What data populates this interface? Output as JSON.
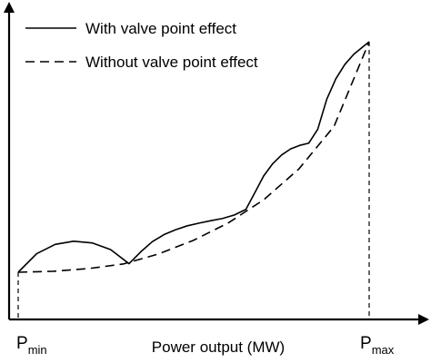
{
  "chart_data": {
    "type": "line",
    "title": "",
    "xlabel": "Power output (MW)",
    "ylabel": "",
    "x_tick_labels": [
      {
        "main": "P",
        "sub": "min"
      },
      {
        "main": "P",
        "sub": "max"
      }
    ],
    "xlim": [
      0,
      1
    ],
    "ylim": [
      0,
      1
    ],
    "grid": false,
    "legend": {
      "placement": "top-left",
      "entries": [
        {
          "label": "With valve point effect",
          "style": "solid"
        },
        {
          "label": "Without valve point effect",
          "style": "dashed"
        }
      ]
    },
    "series": [
      {
        "name": "With valve point effect",
        "style": "solid",
        "x": [
          0.0,
          0.0526,
          0.1053,
          0.1579,
          0.2105,
          0.2632,
          0.3158,
          0.3488,
          0.3821,
          0.4154,
          0.4487,
          0.4821,
          0.5154,
          0.5487,
          0.5821,
          0.6154,
          0.6487,
          0.6737,
          0.6994,
          0.7251,
          0.7508,
          0.7765,
          0.8021,
          0.8278,
          0.8535,
          0.8792,
          0.9049,
          0.9306,
          0.9563,
          0.982,
          1.0
        ],
        "y": [
          0.0,
          0.076,
          0.114,
          0.127,
          0.12,
          0.093,
          0.035,
          0.083,
          0.125,
          0.154,
          0.174,
          0.19,
          0.201,
          0.211,
          0.22,
          0.234,
          0.257,
          0.324,
          0.394,
          0.444,
          0.48,
          0.505,
          0.519,
          0.528,
          0.585,
          0.708,
          0.791,
          0.85,
          0.892,
          0.922,
          0.943
        ]
      },
      {
        "name": "Without valve point effect",
        "style": "dashed",
        "x": [
          0.0,
          0.1,
          0.2,
          0.3,
          0.4,
          0.5,
          0.6,
          0.7,
          0.8,
          0.9,
          1.0
        ],
        "y": [
          0.0,
          0.004,
          0.015,
          0.034,
          0.075,
          0.131,
          0.203,
          0.297,
          0.423,
          0.597,
          0.943
        ]
      }
    ]
  }
}
